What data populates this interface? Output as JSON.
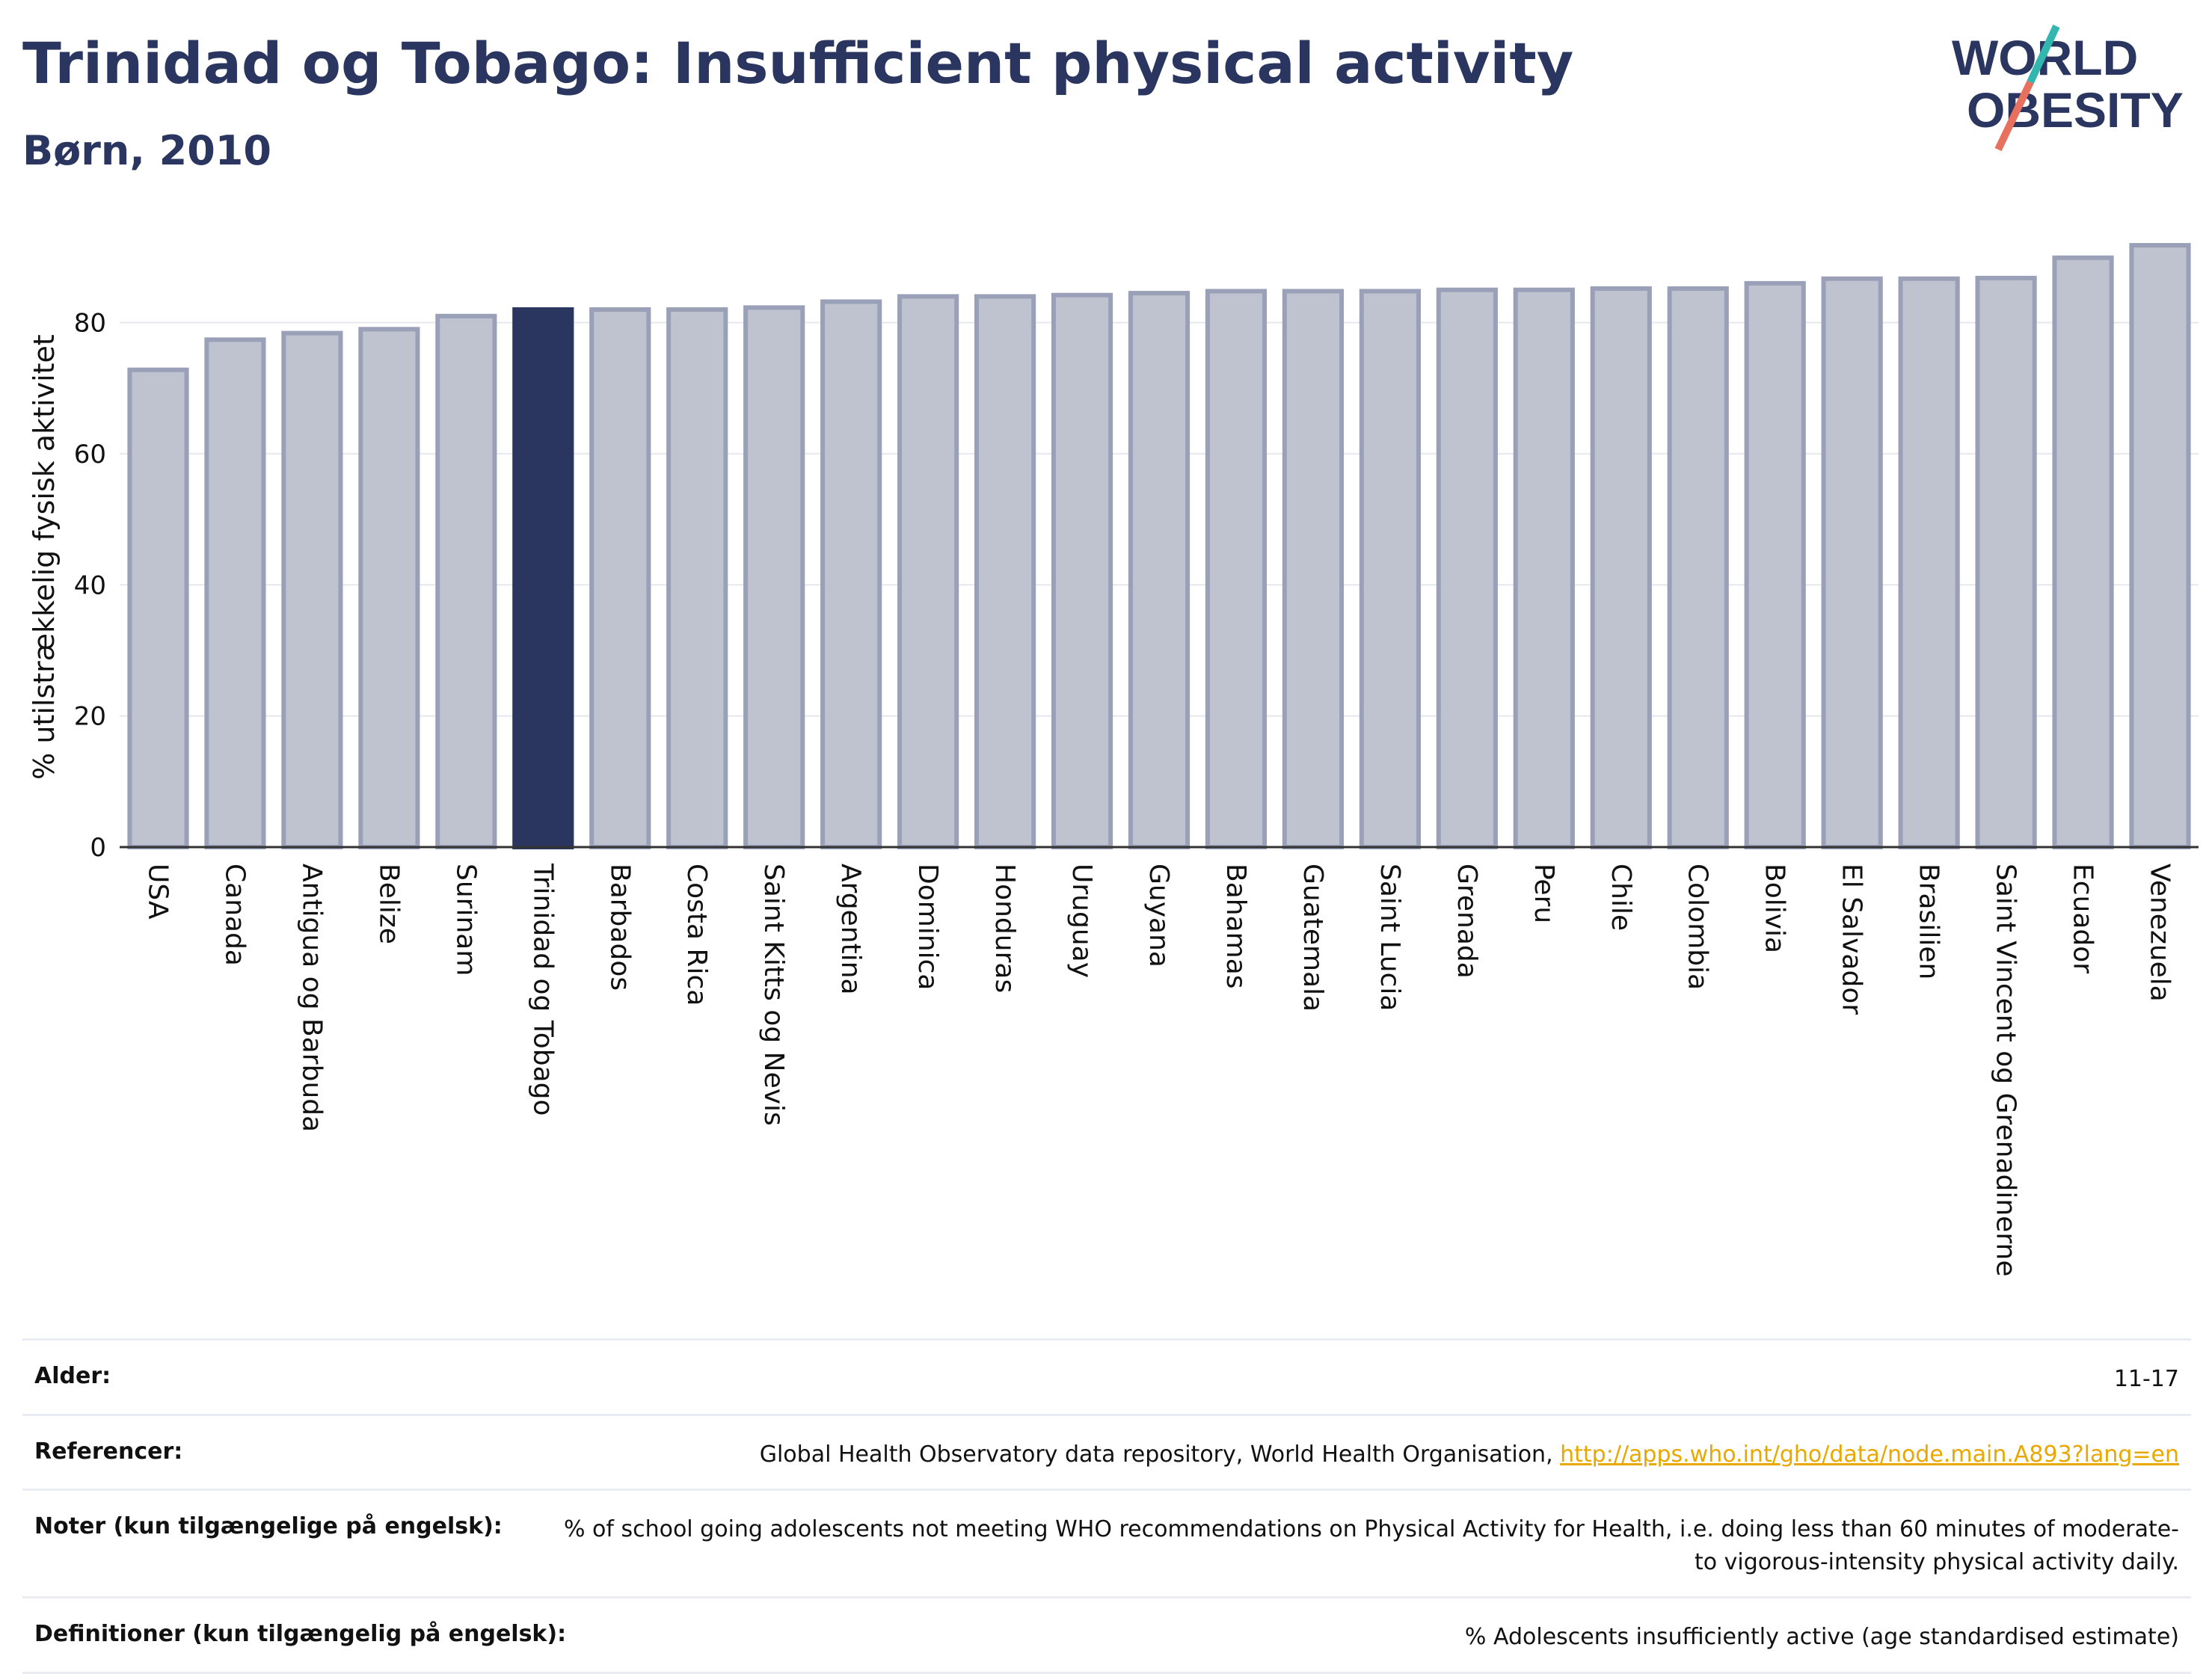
{
  "header": {
    "title": "Trinidad og Tobago: Insufficient physical activity",
    "subtitle": "Børn, 2010"
  },
  "logo": {
    "line1": "WORLD",
    "line2": "OBESITY",
    "colors": {
      "text": "#2a3560",
      "slash_top": "#33b5b0",
      "slash_bottom": "#e8705f"
    }
  },
  "chart_data": {
    "type": "bar",
    "ylabel": "% utilstrækkelig fysisk aktivitet",
    "ylim": [
      0,
      95
    ],
    "yticks": [
      0,
      20,
      40,
      60,
      80
    ],
    "grid": true,
    "highlight": "Trinidad og Tobago",
    "colors": {
      "bar": "#bfc2cf",
      "bar_edge": "#9aa0b8",
      "highlight": "#2a3560",
      "grid": "#e6e8ee",
      "axis": "#333333"
    },
    "categories": [
      "USA",
      "Canada",
      "Antigua og Barbuda",
      "Belize",
      "Surinam",
      "Trinidad og Tobago",
      "Barbados",
      "Costa Rica",
      "Saint Kitts og Nevis",
      "Argentina",
      "Dominica",
      "Honduras",
      "Uruguay",
      "Guyana",
      "Bahamas",
      "Guatemala",
      "Saint Lucia",
      "Grenada",
      "Peru",
      "Chile",
      "Colombia",
      "Bolivia",
      "El Salvador",
      "Brasilien",
      "Saint Vincent og Grenadinerne",
      "Ecuador",
      "Venezuela"
    ],
    "values": [
      72.8,
      77.4,
      78.4,
      79.0,
      81.0,
      82.0,
      82.0,
      82.0,
      82.3,
      83.2,
      84.0,
      84.0,
      84.2,
      84.5,
      84.8,
      84.8,
      84.8,
      85.0,
      85.0,
      85.2,
      85.2,
      86.0,
      86.7,
      86.7,
      86.8,
      89.9,
      91.8
    ]
  },
  "info": {
    "age_label": "Alder:",
    "age_value": "11-17",
    "ref_label": "Referencer:",
    "ref_text": "Global Health Observatory data repository, World Health Organisation, ",
    "ref_link": "http://apps.who.int/gho/data/node.main.A893?lang=en",
    "notes_label": "Noter (kun tilgængelige på engelsk):",
    "notes_value": "% of school going adolescents not meeting WHO recommendations on Physical Activity for Health, i.e. doing less than 60 minutes of moderate- to vigorous-intensity physical activity daily.",
    "def_label": "Definitioner (kun tilgængelig på engelsk):",
    "def_value": "% Adolescents insufficiently active (age standardised estimate)"
  }
}
